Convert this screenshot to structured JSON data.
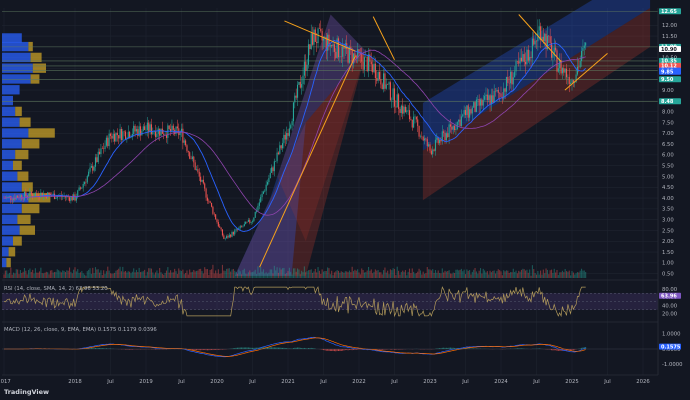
{
  "header": {
    "published": "saverippimeni published on TradingView.com, Mar 15, 2025 10:12 UTC+1",
    "symbol": "REKKAR ASA · 1W · OSL",
    "ohlc": "O11.45 H11.75 L10.20 C11.00 −0.10 (−0.90%)",
    "vrvp": "VRVP (Number Of Rows, 24, Up/Down) 2.54 2.52",
    "volume": "Vol (20) 647.674 709.516",
    "sma50": "SMA - 50 (50, close, 0, SMA, 50) 10.00",
    "sma200": "SMA - 50 (200, close, 0, SMA, 200) 9.00"
  },
  "footer": {
    "brand": "TradingView"
  },
  "colors": {
    "up": "#26a69a",
    "down": "#ef5350",
    "sma_fast": "#2962ff",
    "sma_slow": "#8e44ad",
    "trend": "#f7a21b",
    "profile_up": "#2962ff",
    "profile_down": "#c9a227",
    "channel_blue": "#2962ff",
    "channel_red": "#c0392b",
    "rsi_line": "#b29a5b",
    "macd_line": "#2962ff",
    "signal_line": "#ff6d00"
  },
  "chart_data": {
    "type": "candlestick",
    "time_labels": [
      "2017",
      "2018",
      "Jul",
      "2019",
      "Jul",
      "2020",
      "Jul",
      "2021",
      "Jul",
      "2022",
      "Jul",
      "2023",
      "Jul",
      "2024",
      "Jul",
      "2025",
      "Jul",
      "2026"
    ],
    "price_axis": {
      "ticks": [
        "12.00",
        "11.50",
        "11.00",
        "10.50",
        "10.00",
        "9.50",
        "9.00",
        "8.50",
        "8.00",
        "7.50",
        "7.00",
        "6.50",
        "6.00",
        "5.50",
        "5.00",
        "4.50",
        "4.00",
        "3.50",
        "3.00",
        "2.50",
        "2.00",
        "1.50",
        "1.00",
        "0.50"
      ],
      "range": [
        0.3,
        12.8
      ]
    },
    "price_close_path": [
      [
        "2017",
        4.0
      ],
      [
        "Jul 2017",
        4.2
      ],
      [
        "2018",
        4.0
      ],
      [
        "Jul 2018",
        6.9
      ],
      [
        "2019",
        7.2
      ],
      [
        "Jul 2019",
        7.0
      ],
      [
        "early 2020",
        2.1
      ],
      [
        "Jul 2020",
        3.0
      ],
      [
        "2021",
        7.2
      ],
      [
        "May 2021",
        11.5
      ],
      [
        "Dec 2021",
        10.5
      ],
      [
        "Mar 2022",
        10.1
      ],
      [
        "Jul 2022",
        8.6
      ],
      [
        "Oct 2022",
        7.4
      ],
      [
        "2023",
        6.2
      ],
      [
        "Jul 2023",
        7.9
      ],
      [
        "2024",
        8.9
      ],
      [
        "Jun 2024",
        11.0
      ],
      [
        "Jul 2024",
        11.9
      ],
      [
        "Oct 2024",
        10.2
      ],
      [
        "2025",
        9.5
      ],
      [
        "Mar 2025",
        11.0
      ]
    ],
    "last_close": 11.0,
    "price_tags": [
      {
        "label": "12.65",
        "value": 12.65,
        "color": "#26a69a"
      },
      {
        "label": "11.00",
        "value": 11.0,
        "color": "#26a69a"
      },
      {
        "label": "10.90",
        "value": 10.9,
        "color": "#ffffff"
      },
      {
        "label": "10.35",
        "value": 10.35,
        "color": "#26a69a"
      },
      {
        "label": "10.12",
        "value": 10.12,
        "color": "#ef5350"
      },
      {
        "label": "9.90",
        "value": 9.9,
        "color": "#2962ff"
      },
      {
        "label": "9.85",
        "value": 9.85,
        "color": "#2962ff"
      },
      {
        "label": "9.50",
        "value": 9.5,
        "color": "#26a69a"
      },
      {
        "label": "8.48",
        "value": 8.48,
        "color": "#26a69a"
      }
    ],
    "horizontal_levels": [
      12.65,
      11.0,
      10.35,
      10.12,
      9.9,
      9.5,
      8.48
    ],
    "rsi": {
      "label": "RSI (14, close, SMA, 14, 2) 63.96 53.20",
      "upper": 70,
      "lower": 30,
      "ticks": [
        "80.00",
        "60.00",
        "40.00",
        "20.00"
      ],
      "range": [
        10,
        90
      ],
      "last": 63.96
    },
    "macd": {
      "label": "MACD (12, 26, close, 9, EMA, EMA) 0.1575 0.1179 0.0396",
      "ticks": [
        "1.0000",
        "0.0000",
        "-1.0000"
      ],
      "range": [
        -1.5,
        1.5
      ],
      "last": 0.1575
    }
  }
}
